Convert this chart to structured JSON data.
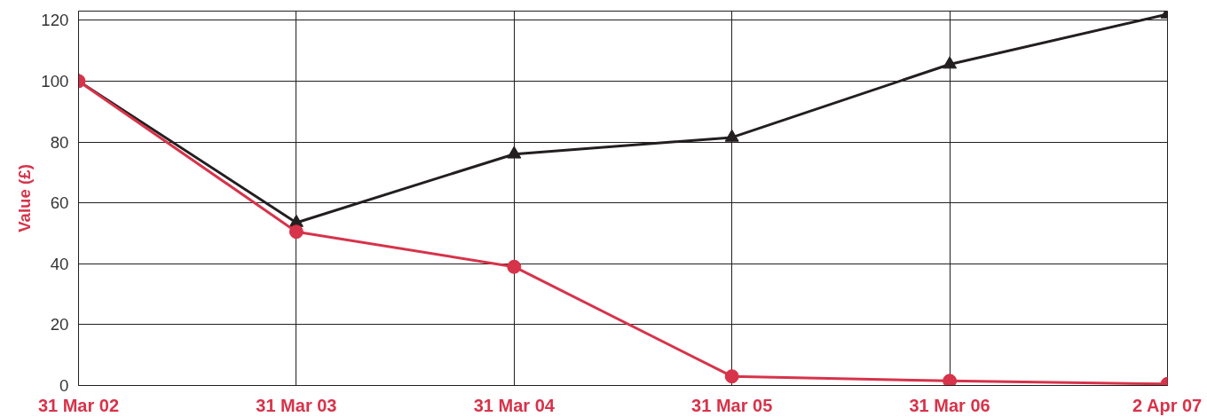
{
  "chart_data": {
    "type": "line",
    "ylabel": "Value (£)",
    "categories": [
      "31 Mar 02",
      "31 Mar 03",
      "31 Mar 04",
      "31 Mar 05",
      "31 Mar 06",
      "2 Apr 07"
    ],
    "series": [
      {
        "color": "#231f20",
        "marker": "triangle",
        "values": [
          100,
          53.5,
          76,
          81.5,
          105.5,
          122
        ]
      },
      {
        "color": "#d7334a",
        "marker": "circle",
        "values": [
          100,
          50.5,
          39,
          3,
          1.5,
          0.5
        ]
      }
    ],
    "ylim": [
      0,
      123
    ],
    "yticks": [
      0,
      20,
      40,
      60,
      80,
      100,
      120
    ],
    "grid": true,
    "line_style": "solid"
  }
}
